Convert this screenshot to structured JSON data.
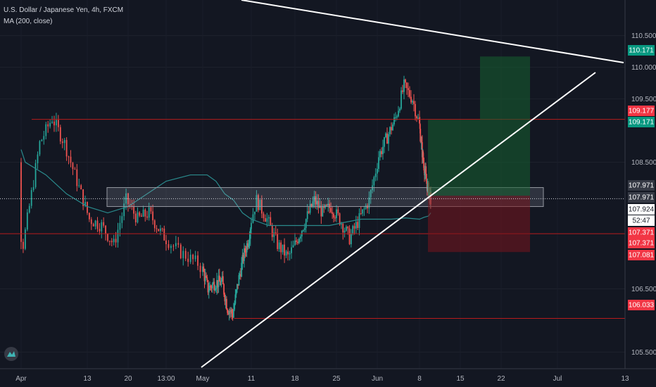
{
  "header": {
    "title": "U.S. Dollar / Japanese Yen, 4h, FXCM",
    "indicator": "MA (200, close)"
  },
  "chart_data": {
    "type": "candlestick",
    "symbol": "USDJPY",
    "interval": "4h",
    "y_axis": {
      "ticks": [
        "110.500",
        "110.000",
        "109.500",
        "108.500",
        "106.500",
        "105.500"
      ],
      "ylim": [
        105.26,
        110.93
      ]
    },
    "x_axis": {
      "ticks": [
        "Apr",
        "13",
        "20",
        "13:00",
        "May",
        "11",
        "18",
        "25",
        "Jun",
        "8",
        "15",
        "22",
        "Jul",
        "13"
      ]
    },
    "price_labels": [
      {
        "value": 110.171,
        "text": "110.171",
        "color": "#089981"
      },
      {
        "value": 109.177,
        "text": "109.177",
        "color": "#f23645"
      },
      {
        "value": 109.171,
        "text": "109.171",
        "color": "#089981"
      },
      {
        "value": 107.971,
        "text": "107.971",
        "color": "#363a45"
      },
      {
        "value": 107.971,
        "text": "107.971",
        "color": "#363a45"
      },
      {
        "value": 107.924,
        "text": "107.924",
        "color": "#ffffff"
      },
      {
        "value": 107.924,
        "text": "52:47",
        "color": "#ffffff"
      },
      {
        "value": 107.371,
        "text": "107.371",
        "color": "#f23645"
      },
      {
        "value": 107.371,
        "text": "107.371",
        "color": "#f23645"
      },
      {
        "value": 107.081,
        "text": "107.081",
        "color": "#f23645"
      },
      {
        "value": 106.033,
        "text": "106.033",
        "color": "#f23645"
      }
    ],
    "horizontal_levels": [
      109.177,
      107.371,
      106.033,
      107.971
    ],
    "current_price": 107.924,
    "position": {
      "entry": 107.971,
      "target": 110.171,
      "stop": 107.081
    },
    "colors": {
      "up": "#26a69a",
      "down": "#ef5350",
      "ma": "#2a8a8c",
      "level": "#b71c1c",
      "trendline": "#ffffff",
      "background": "#131722"
    }
  }
}
